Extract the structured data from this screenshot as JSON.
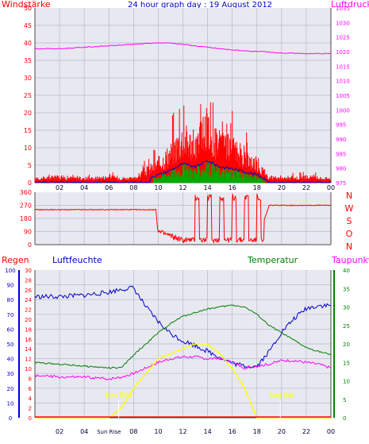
{
  "title": "24 hour graph day : 19 August 2012",
  "colors": {
    "wind": "#ff0000",
    "gust": "#00aa00",
    "avg": "#0000cc",
    "pressure": "#ff00ff",
    "direction": "#ff0000",
    "humidity": "#0000cc",
    "temperature": "#008000",
    "dewpoint": "#ff00ff",
    "solar": "#ffff00",
    "rain": "#ff0000",
    "grid": "#b8b8d0",
    "plotbg": "#e8e8f0",
    "axis": "#4d4d4d"
  },
  "x_ticks": [
    "02",
    "04",
    "06",
    "08",
    "10",
    "12",
    "14",
    "16",
    "18",
    "20",
    "22",
    "00"
  ],
  "bottom_x_ticks": [
    "02",
    "04",
    "Sun Rise",
    "08",
    "10",
    "12",
    "14",
    "16",
    "18",
    "20",
    "22",
    "00"
  ],
  "panels": {
    "wind": {
      "left_label": "Windstärke",
      "right_label": "Luftdruck",
      "left_ticks": [
        "0",
        "5",
        "10",
        "15",
        "20",
        "25",
        "30",
        "35",
        "40",
        "45",
        "50"
      ],
      "right_ticks": [
        "975",
        "980",
        "985",
        "990",
        "995",
        "1000",
        "1005",
        "1010",
        "1015",
        "1020",
        "1025",
        "1030",
        "1035"
      ]
    },
    "direction": {
      "left_ticks": [
        "0",
        "90",
        "180",
        "270",
        "360"
      ],
      "right_labels": [
        "N",
        "W",
        "S",
        "O",
        "N"
      ]
    },
    "weather": {
      "rain_label": "Regen",
      "humidity_label": "Luftfeuchte",
      "temperature_label": "Temperatur",
      "dewpoint_label": "Taupunkt",
      "humidity_ticks": [
        "0",
        "10",
        "20",
        "30",
        "40",
        "50",
        "60",
        "70",
        "80",
        "90",
        "100"
      ],
      "rain_ticks": [
        "0",
        "2",
        "4",
        "6",
        "8",
        "10",
        "12",
        "14",
        "16",
        "18",
        "20",
        "22",
        "24",
        "26",
        "28",
        "30"
      ],
      "temp_ticks": [
        "0",
        "5",
        "10",
        "15",
        "20",
        "25",
        "30",
        "35",
        "40"
      ],
      "sunrise_label": "Sun Rise",
      "sunset_label": "Sun Set"
    }
  },
  "chart_data": [
    {
      "type": "line",
      "title": "24 hour graph day : 19 August 2012",
      "ylabel": "Windstärke",
      "ylabel_right": "Luftdruck",
      "ylim": [
        0,
        50
      ],
      "ylim_right": [
        975,
        1035
      ],
      "x_hours": [
        0,
        2,
        4,
        6,
        8,
        9,
        10,
        11,
        12,
        13,
        14,
        15,
        16,
        17,
        18,
        18.5,
        19,
        20,
        22,
        24
      ],
      "series": [
        {
          "name": "Windstärke",
          "axis": "left",
          "values": [
            1,
            1.5,
            1,
            1.5,
            1,
            3,
            5,
            8,
            12,
            10,
            14,
            10,
            9,
            7,
            5,
            3,
            1.5,
            1,
            1.5,
            1
          ]
        },
        {
          "name": "Luftdruck",
          "axis": "right",
          "values": [
            1021,
            1021,
            1021.5,
            1022,
            1022.5,
            1022.8,
            1023,
            1023,
            1022.5,
            1022,
            1021.5,
            1021,
            1020.6,
            1020.3,
            1020,
            1020,
            1019.8,
            1019.5,
            1019.3,
            1019.3
          ]
        }
      ]
    },
    {
      "type": "line",
      "ylim": [
        0,
        360
      ],
      "x_hours": [
        0,
        5,
        9.8,
        10,
        11,
        12,
        12.5,
        13,
        14,
        15,
        16,
        17,
        18,
        19,
        22,
        24
      ],
      "series": [
        {
          "values": [
            240,
            240,
            240,
            90,
            60,
            30,
            40,
            300,
            20,
            20,
            300,
            20,
            20,
            270,
            270,
            270
          ]
        }
      ]
    },
    {
      "type": "line",
      "ylim_humidity": [
        0,
        100
      ],
      "ylim_rain": [
        0,
        30
      ],
      "ylim_temperature": [
        0,
        40
      ],
      "x_hours": [
        0,
        2,
        4,
        6,
        7,
        8,
        9,
        10,
        11,
        12,
        13,
        14,
        15,
        16,
        17,
        18,
        19,
        20,
        21,
        22,
        23,
        24
      ],
      "series": [
        {
          "name": "Luftfeuchte",
          "axis": "humidity",
          "values": [
            82,
            82,
            83,
            85,
            87,
            88,
            75,
            65,
            57,
            52,
            49,
            45,
            41,
            37,
            35,
            35,
            45,
            58,
            67,
            74,
            76,
            76
          ]
        },
        {
          "name": "Temperatur",
          "axis": "temperature",
          "values": [
            15,
            14.5,
            14,
            13.5,
            13.5,
            17,
            20,
            23,
            25.5,
            27.5,
            28.5,
            29.5,
            30,
            30.5,
            30,
            28,
            25,
            23,
            21,
            19,
            18,
            17
          ]
        },
        {
          "name": "Taupunkt",
          "axis": "temperature",
          "values": [
            11.5,
            11,
            11,
            10.5,
            11,
            12,
            13.5,
            15,
            16,
            16.5,
            16.5,
            16,
            16,
            15,
            13.5,
            14,
            14.5,
            15.5,
            15.5,
            15,
            14.5,
            13.5
          ]
        },
        {
          "name": "Sun",
          "axis": "rain",
          "values": [
            0,
            0,
            0,
            0,
            2,
            6,
            9,
            12,
            13,
            14,
            15,
            15,
            13,
            10,
            6,
            0,
            0,
            0,
            0,
            0,
            0,
            0
          ]
        },
        {
          "name": "Regen",
          "axis": "rain",
          "values": [
            0,
            0,
            0,
            0,
            0,
            0,
            0,
            0,
            0,
            0,
            0,
            0,
            0,
            0,
            0,
            0,
            0,
            0,
            0,
            0,
            0,
            0
          ]
        }
      ]
    }
  ]
}
